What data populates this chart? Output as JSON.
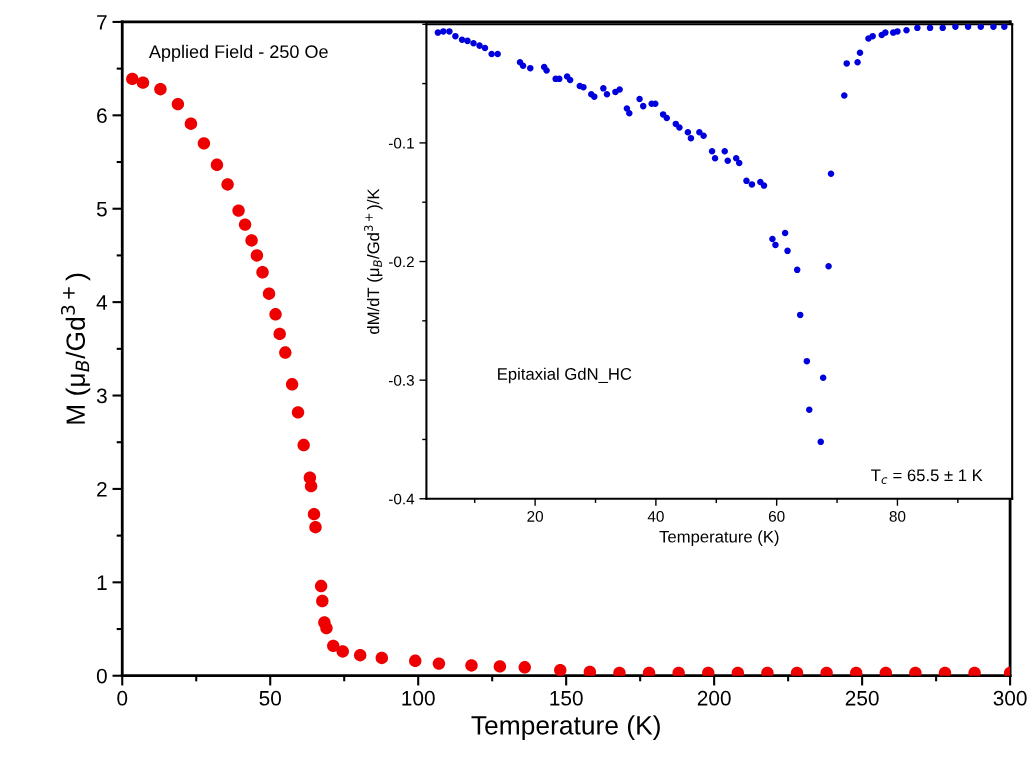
{
  "chart_data": [
    {
      "type": "scatter",
      "xlabel": "Temperature (K)",
      "ylabel": "M (μ$_{B}$/Gd$^{3+}$)",
      "annotations": [
        "Applied Field - 250 Oe"
      ],
      "xlim": [
        0,
        300
      ],
      "ylim": [
        0,
        7
      ],
      "xticks": [
        0,
        50,
        100,
        150,
        200,
        250,
        300
      ],
      "yticks": [
        0,
        1,
        2,
        3,
        4,
        5,
        6,
        7
      ],
      "grid": false,
      "marker": "circle",
      "series": [
        {
          "color": "#ee0000",
          "x": [
            3.4,
            7.0,
            12.9,
            18.8,
            23.2,
            27.6,
            32,
            35.6,
            39.3,
            41.5,
            43.7,
            45.5,
            47.4,
            49.6,
            51.8,
            53.2,
            55.1,
            57.4,
            59.4,
            61.3,
            63.4,
            63.8,
            64.8,
            65.3,
            67.2,
            67.6,
            68.3,
            69,
            71.3,
            74.5,
            80.4,
            87.7,
            99,
            107,
            118,
            127.6,
            136,
            148,
            158,
            168,
            178,
            188,
            198,
            208,
            218,
            228,
            238,
            248,
            258,
            268,
            278,
            288,
            300
          ],
          "values": [
            6.39,
            6.35,
            6.28,
            6.12,
            5.91,
            5.7,
            5.47,
            5.26,
            4.98,
            4.83,
            4.66,
            4.5,
            4.32,
            4.09,
            3.87,
            3.66,
            3.46,
            3.12,
            2.82,
            2.47,
            2.12,
            2.03,
            1.73,
            1.59,
            0.96,
            0.8,
            0.57,
            0.51,
            0.32,
            0.26,
            0.22,
            0.19,
            0.16,
            0.13,
            0.11,
            0.1,
            0.09,
            0.06,
            0.04,
            0.03,
            0.03,
            0.03,
            0.03,
            0.03,
            0.03,
            0.03,
            0.03,
            0.03,
            0.03,
            0.03,
            0.03,
            0.03,
            0.03
          ]
        }
      ]
    },
    {
      "type": "scatter",
      "xlabel": "Temperature (K)",
      "ylabel": "dM/dT (μ$_{B}$/Gd$^{3+}$)/K",
      "annotations": [
        "Epitaxial GdN_HC",
        "T$_{c}$ = 65.5 ± 1 K"
      ],
      "xlim": [
        2,
        99
      ],
      "ylim": [
        -0.4,
        0
      ],
      "xticks": [
        20,
        40,
        60,
        80
      ],
      "yticks": [
        -0.4,
        -0.3,
        -0.2,
        -0.1
      ],
      "grid": false,
      "marker": "circle",
      "series": [
        {
          "color": "#0000dd",
          "x": [
            3.9,
            4.8,
            5.8,
            6.8,
            7.9,
            8.8,
            9.8,
            10.8,
            11.7,
            12.8,
            13.8,
            17.5,
            18.0,
            19.2,
            21.5,
            21.9,
            23.4,
            24.0,
            25.3,
            25.8,
            27.4,
            28.0,
            29.3,
            29.8,
            31.3,
            31.9,
            33.3,
            34.0,
            35.2,
            35.6,
            37.3,
            37.9,
            39.3,
            39.9,
            41.2,
            41.8,
            43.3,
            43.9,
            45.3,
            45.8,
            47.2,
            47.9,
            49.3,
            49.8,
            51.4,
            51.9,
            53.3,
            53.8,
            55.0,
            55.9,
            57.3,
            57.9,
            59.3,
            59.8,
            61.4,
            61.8,
            63.4,
            63.9,
            65.0,
            65.4,
            67.3,
            67.7,
            68.6,
            69.0,
            71.2,
            71.6,
            73.4,
            73.8,
            75.2,
            75.9,
            77.4,
            78.0,
            79.3,
            80.0,
            81.5,
            83.3,
            85.4,
            87.5,
            89.6,
            91.7,
            93.8,
            95.9,
            97.7
          ],
          "values": [
            -0.007,
            -0.006,
            -0.006,
            -0.01,
            -0.013,
            -0.014,
            -0.016,
            -0.018,
            -0.02,
            -0.025,
            -0.025,
            -0.032,
            -0.035,
            -0.037,
            -0.036,
            -0.039,
            -0.046,
            -0.046,
            -0.044,
            -0.047,
            -0.052,
            -0.053,
            -0.059,
            -0.061,
            -0.054,
            -0.059,
            -0.057,
            -0.055,
            -0.071,
            -0.075,
            -0.063,
            -0.069,
            -0.067,
            -0.067,
            -0.076,
            -0.079,
            -0.084,
            -0.087,
            -0.091,
            -0.096,
            -0.091,
            -0.094,
            -0.107,
            -0.113,
            -0.107,
            -0.115,
            -0.113,
            -0.117,
            -0.132,
            -0.135,
            -0.133,
            -0.136,
            -0.181,
            -0.186,
            -0.176,
            -0.191,
            -0.207,
            -0.245,
            -0.284,
            -0.325,
            -0.352,
            -0.298,
            -0.204,
            -0.126,
            -0.06,
            -0.033,
            -0.032,
            -0.024,
            -0.012,
            -0.01,
            -0.009,
            -0.007,
            -0.007,
            -0.006,
            -0.005,
            -0.003,
            -0.003,
            -0.003,
            -0.002,
            -0.002,
            -0.002,
            -0.002,
            -0.002
          ]
        }
      ]
    }
  ]
}
